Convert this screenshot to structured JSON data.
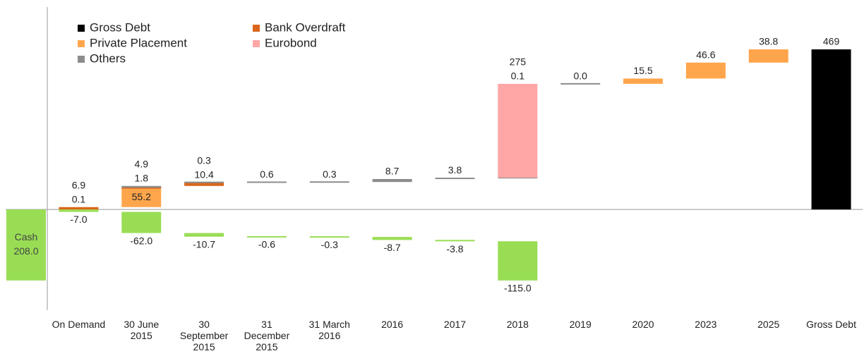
{
  "chart_data": {
    "type": "waterfall",
    "categories": [
      "On Demand",
      "30 June 2015",
      "30 September 2015",
      "31 December 2015",
      "31 March 2016",
      "2016",
      "2017",
      "2018",
      "2019",
      "2020",
      "2023",
      "2025",
      "Gross Debt"
    ],
    "series": [
      {
        "name": "Private Placement",
        "color": "#ffa64d",
        "values": [
          0.1,
          55.2,
          null,
          null,
          null,
          null,
          null,
          null,
          null,
          15.5,
          46.6,
          38.8,
          null
        ]
      },
      {
        "name": "Bank Overdraft",
        "color": "#d9661c",
        "values": [
          6.9,
          1.8,
          10.4,
          null,
          null,
          null,
          null,
          null,
          null,
          null,
          null,
          null,
          null
        ]
      },
      {
        "name": "Others",
        "color": "#8c8c8c",
        "values": [
          null,
          4.9,
          0.3,
          0.6,
          0.3,
          8.7,
          3.8,
          0.1,
          0.0,
          null,
          null,
          null,
          null
        ],
        "value_labels": [
          null,
          "4.9",
          "0.3",
          "0.6",
          "0.3",
          "8.7",
          "3.8",
          "0.1",
          "0.0",
          null,
          null,
          null,
          null
        ]
      },
      {
        "name": "Eurobond",
        "color": "#ffa6a6",
        "values": [
          null,
          null,
          null,
          null,
          null,
          null,
          null,
          275,
          null,
          null,
          null,
          null,
          null
        ]
      },
      {
        "name": "Gross Debt",
        "color": "#000000",
        "total": true,
        "values": [
          null,
          null,
          null,
          null,
          null,
          null,
          null,
          null,
          null,
          null,
          null,
          null,
          469
        ]
      }
    ],
    "offsets": {
      "color": "#99dd55",
      "values": [
        -7.0,
        -62.0,
        -10.7,
        -0.6,
        -0.3,
        -8.7,
        -3.8,
        -115.0,
        null,
        null,
        null,
        null,
        null
      ],
      "value_labels": [
        "-7.0",
        "-62.0",
        "-10.7",
        "-0.6",
        "-0.3",
        "-8.7",
        "-3.8",
        "-115.0",
        null,
        null,
        null,
        null,
        null
      ]
    },
    "cash": {
      "label": "Cash",
      "value": -208.0,
      "value_label": "208.0"
    },
    "legend_order": [
      4,
      1,
      0,
      3,
      2
    ],
    "ylim": [
      -295,
      593
    ]
  }
}
